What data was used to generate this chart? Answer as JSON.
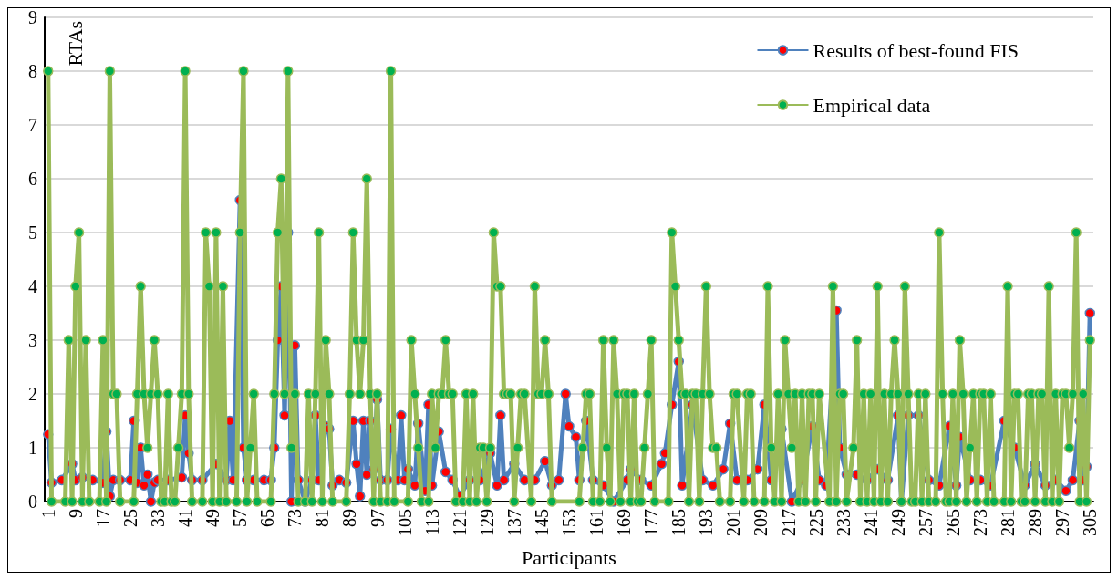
{
  "chart_data": {
    "type": "line",
    "xlabel": "Participants",
    "ylabel": "RTAs",
    "xlim": [
      0,
      306
    ],
    "xticks": [
      1,
      9,
      17,
      25,
      33,
      41,
      49,
      57,
      65,
      73,
      81,
      89,
      97,
      105,
      113,
      121,
      129,
      137,
      145,
      153,
      161,
      169,
      177,
      185,
      193,
      201,
      209,
      217,
      225,
      233,
      241,
      249,
      257,
      265,
      273,
      281,
      289,
      297,
      305
    ],
    "ylim": [
      0,
      9
    ],
    "yticks": [
      0,
      1,
      2,
      3,
      4,
      5,
      6,
      7,
      8,
      9
    ],
    "grid": "y",
    "legend": "top right",
    "marker": "circle",
    "line_style": "solid",
    "series": [
      {
        "name": "Results of best-found FIS",
        "color": "#4f81bd",
        "x": [
          1,
          2,
          5,
          8,
          9,
          11,
          14,
          17,
          18,
          19,
          20,
          22,
          25,
          26,
          27,
          28,
          29,
          30,
          31,
          32,
          33,
          36,
          40,
          41,
          42,
          43,
          46,
          50,
          53,
          54,
          55,
          57,
          58,
          59,
          61,
          64,
          66,
          67,
          68,
          69,
          70,
          71,
          72,
          73,
          74,
          76,
          78,
          79,
          80,
          82,
          83,
          84,
          86,
          88,
          90,
          91,
          92,
          93,
          94,
          95,
          96,
          97,
          98,
          100,
          101,
          103,
          104,
          105,
          106,
          108,
          109,
          111,
          112,
          113,
          115,
          117,
          119,
          121,
          124,
          127,
          130,
          132,
          133,
          134,
          137,
          140,
          143,
          146,
          148,
          150,
          152,
          153,
          155,
          156,
          158,
          160,
          163,
          166,
          170,
          171,
          174,
          177,
          180,
          181,
          183,
          185,
          186,
          189,
          192,
          195,
          198,
          200,
          202,
          205,
          208,
          210,
          212,
          215,
          218,
          221,
          224,
          226,
          228,
          231,
          232,
          234,
          237,
          240,
          243,
          246,
          249,
          250,
          252,
          255,
          258,
          261,
          264,
          266,
          267,
          270,
          273,
          276,
          280,
          283,
          286,
          289,
          292,
          295,
          298,
          300,
          302,
          303,
          304,
          305
        ],
        "values": [
          1.25,
          0.35,
          0.4,
          0.7,
          0.4,
          0.45,
          0.4,
          0.35,
          1.3,
          0.1,
          0.4,
          0.4,
          0.4,
          1.5,
          0.35,
          1.0,
          0.3,
          0.5,
          0.0,
          0.35,
          0.4,
          0.4,
          0.45,
          1.6,
          0.9,
          0.4,
          0.4,
          0.7,
          0.4,
          1.5,
          0.4,
          5.6,
          1.0,
          0.4,
          0.4,
          0.4,
          0.4,
          1.0,
          3.0,
          4.0,
          1.6,
          5.0,
          0.0,
          2.9,
          0.4,
          0.0,
          0.4,
          1.6,
          0.4,
          1.4,
          1.35,
          0.3,
          0.4,
          0.35,
          1.5,
          0.7,
          0.1,
          1.5,
          0.5,
          1.5,
          0.6,
          1.9,
          0.4,
          0.4,
          1.35,
          0.4,
          1.6,
          0.4,
          0.6,
          0.3,
          1.45,
          0.2,
          1.8,
          0.3,
          1.3,
          0.55,
          0.4,
          0.1,
          0.4,
          0.4,
          0.9,
          0.3,
          1.6,
          0.4,
          0.7,
          0.4,
          0.4,
          0.75,
          0.3,
          0.4,
          2.0,
          1.4,
          1.2,
          0.4,
          1.5,
          0.4,
          0.3,
          0.0,
          0.4,
          0.6,
          0.4,
          0.3,
          0.7,
          0.9,
          1.8,
          2.6,
          0.3,
          1.8,
          0.4,
          0.3,
          0.6,
          1.45,
          0.4,
          0.4,
          0.6,
          1.8,
          0.4,
          1.35,
          0.0,
          0.4,
          1.4,
          0.4,
          0.3,
          3.55,
          1.0,
          0.5,
          0.5,
          0.4,
          0.6,
          0.4,
          1.6,
          0.0,
          1.6,
          1.6,
          0.4,
          0.3,
          1.4,
          0.3,
          1.2,
          0.4,
          0.4,
          0.3,
          1.5,
          1.0,
          0.3,
          0.7,
          0.3,
          0.4,
          0.2,
          0.4,
          1.5,
          0.4,
          0.65,
          3.5
        ]
      },
      {
        "name": "Empirical data",
        "color": "#9bbb59",
        "x": [
          1,
          2,
          6,
          7,
          8,
          9,
          10,
          11,
          12,
          13,
          16,
          17,
          18,
          19,
          20,
          21,
          22,
          26,
          27,
          28,
          29,
          30,
          31,
          32,
          33,
          34,
          35,
          36,
          37,
          38,
          39,
          40,
          41,
          42,
          43,
          46,
          47,
          48,
          49,
          50,
          51,
          52,
          53,
          56,
          57,
          58,
          59,
          60,
          61,
          62,
          66,
          67,
          68,
          69,
          70,
          71,
          72,
          73,
          74,
          76,
          77,
          78,
          79,
          80,
          81,
          82,
          83,
          84,
          88,
          89,
          90,
          91,
          92,
          93,
          94,
          95,
          96,
          97,
          98,
          100,
          101,
          102,
          106,
          107,
          108,
          109,
          110,
          112,
          113,
          114,
          115,
          116,
          117,
          118,
          119,
          120,
          122,
          123,
          124,
          125,
          126,
          127,
          128,
          129,
          130,
          131,
          132,
          133,
          134,
          135,
          136,
          137,
          138,
          139,
          140,
          142,
          143,
          144,
          145,
          146,
          147,
          148,
          156,
          157,
          158,
          159,
          160,
          162,
          163,
          164,
          165,
          166,
          167,
          168,
          169,
          170,
          171,
          172,
          173,
          174,
          175,
          176,
          177,
          178,
          182,
          183,
          184,
          185,
          186,
          187,
          188,
          189,
          190,
          191,
          192,
          193,
          194,
          195,
          196,
          197,
          200,
          201,
          202,
          204,
          205,
          206,
          207,
          210,
          211,
          212,
          213,
          214,
          215,
          216,
          217,
          218,
          219,
          220,
          221,
          222,
          223,
          224,
          225,
          226,
          229,
          230,
          231,
          232,
          233,
          234,
          236,
          237,
          238,
          239,
          240,
          241,
          242,
          243,
          244,
          245,
          246,
          247,
          248,
          249,
          250,
          251,
          252,
          253,
          254,
          255,
          256,
          257,
          258,
          260,
          261,
          262,
          263,
          264,
          265,
          266,
          267,
          268,
          269,
          270,
          271,
          272,
          273,
          274,
          275,
          276,
          277,
          280,
          281,
          282,
          283,
          284,
          285,
          286,
          287,
          288,
          289,
          290,
          291,
          292,
          293,
          294,
          295,
          296,
          297,
          298,
          299,
          300,
          301,
          302,
          303,
          304,
          305
        ],
        "values": [
          8,
          0,
          0,
          3,
          0,
          4,
          5,
          0,
          3,
          0,
          0,
          3,
          0,
          8,
          2,
          2,
          0,
          0,
          2,
          4,
          2,
          1,
          2,
          3,
          2,
          0,
          0,
          2,
          0,
          0,
          1,
          2,
          8,
          2,
          0,
          0,
          5,
          4,
          0,
          5,
          0,
          4,
          0,
          0,
          5,
          8,
          0,
          1,
          2,
          0,
          0,
          2,
          5,
          6,
          2,
          8,
          1,
          2,
          0,
          0,
          2,
          0,
          2,
          5,
          0,
          3,
          2,
          0,
          0,
          2,
          5,
          3,
          2,
          3,
          6,
          2,
          0,
          2,
          0,
          0,
          8,
          0,
          0,
          3,
          2,
          1,
          0,
          0,
          2,
          1,
          2,
          2,
          3,
          2,
          2,
          0,
          0,
          2,
          0,
          2,
          0,
          1,
          1,
          0,
          1,
          5,
          4,
          4,
          2,
          2,
          2,
          0,
          1,
          2,
          2,
          0,
          4,
          2,
          2,
          3,
          2,
          0,
          0,
          1,
          2,
          2,
          0,
          0,
          3,
          1,
          0,
          3,
          2,
          0,
          2,
          2,
          0,
          2,
          0,
          0,
          1,
          2,
          3,
          0,
          0,
          5,
          4,
          3,
          2,
          2,
          0,
          2,
          2,
          0,
          2,
          4,
          2,
          1,
          1,
          0,
          0,
          2,
          2,
          0,
          2,
          2,
          0,
          0,
          4,
          1,
          0,
          2,
          0,
          3,
          2,
          1,
          2,
          0,
          2,
          0,
          2,
          2,
          0,
          2,
          0,
          4,
          0,
          2,
          2,
          0,
          1,
          3,
          0,
          2,
          0,
          2,
          0,
          4,
          0,
          2,
          0,
          2,
          3,
          2,
          0,
          4,
          2,
          0,
          0,
          2,
          0,
          2,
          0,
          0,
          5,
          2,
          0,
          0,
          2,
          0,
          3,
          2,
          0,
          1,
          2,
          0,
          2,
          2,
          0,
          2,
          0,
          0,
          4,
          0,
          2,
          2,
          0,
          0,
          2,
          2,
          0,
          2,
          2,
          0,
          4,
          0,
          2,
          0,
          2,
          2,
          1,
          2,
          5,
          0,
          2,
          0,
          3
        ]
      }
    ]
  }
}
